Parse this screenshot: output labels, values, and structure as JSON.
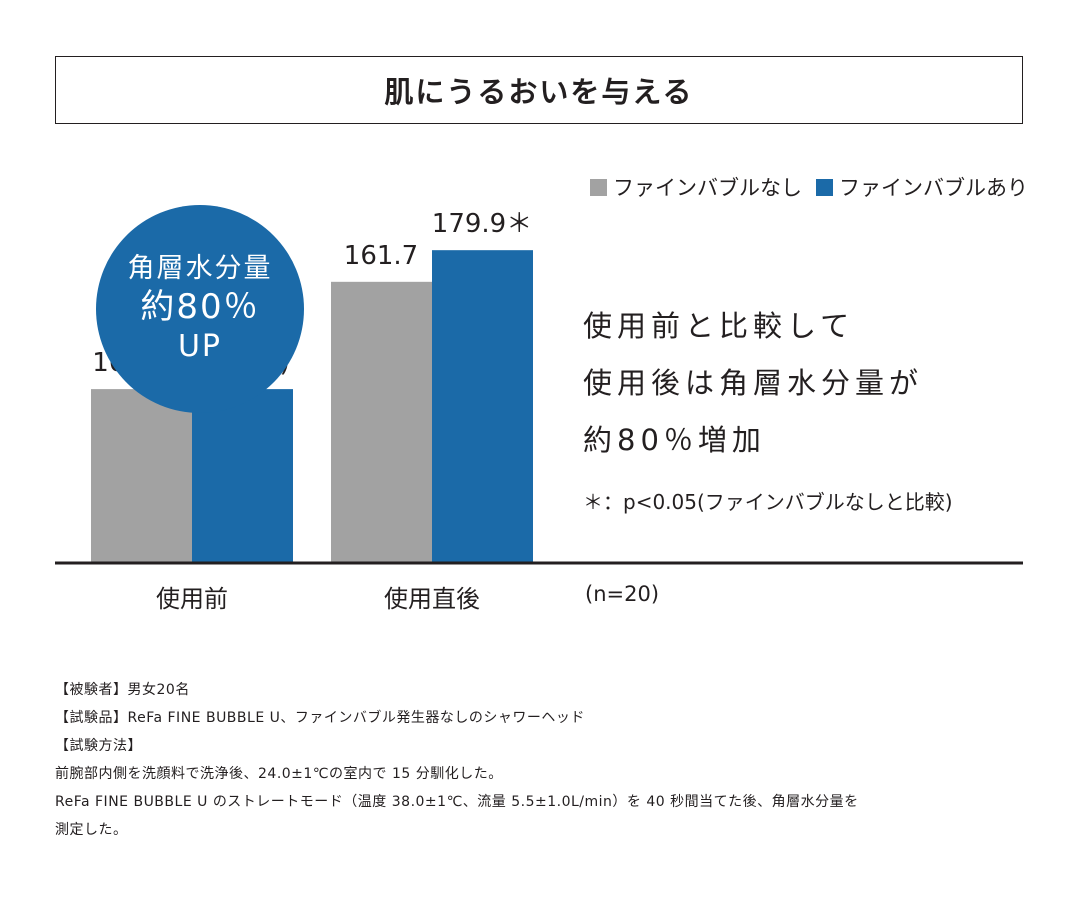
{
  "title": "肌にうるおいを与える",
  "colors": {
    "gray": "#a2a2a2",
    "blue": "#1b6aa8",
    "text": "#231f20"
  },
  "badge": {
    "line1": "角層水分量",
    "line2": "約80％",
    "line3": "UP"
  },
  "summary": [
    "使用前と比較して",
    "使用後は角層水分量が",
    "約80％増加"
  ],
  "significance_note": "＊：p<0.05(ファインバブルなしと比較)",
  "sample_size": "(n=20)",
  "notes": [
    "【被験者】男女20名",
    "【試験品】ReFa FINE BUBBLE U、ファインバブル発生器なしのシャワーヘッド",
    "【試験方法】",
    "前腕部内側を洗顔料で洗浄後、24.0±1℃の室内で 15 分馴化した。",
    "ReFa FINE BUBBLE U のストレートモード（温度 38.0±1℃、流量 5.5±1.0L/min）を 40 秒間当てた後、角層水分量を",
    "測定した。"
  ],
  "chart_data": {
    "type": "bar",
    "categories": [
      "使用前",
      "使用直後"
    ],
    "series": [
      {
        "name": "ファインバブルなし",
        "values": [
          100.0,
          161.7
        ],
        "color": "#a2a2a2"
      },
      {
        "name": "ファインバブルあり",
        "values": [
          100.0,
          179.9
        ],
        "color": "#1b6aa8"
      }
    ],
    "data_labels": [
      "100.0(単位：%)",
      "161.7",
      "179.9＊"
    ],
    "legend_position": "top-right",
    "grid": false,
    "ylim": [
      0,
      180
    ]
  }
}
